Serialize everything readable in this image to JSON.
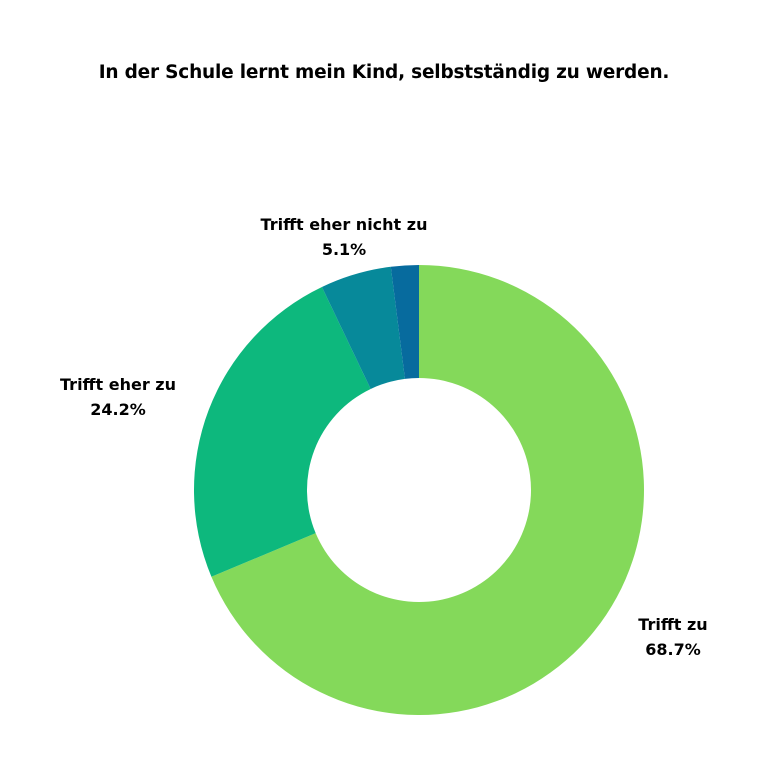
{
  "chart_data": {
    "type": "pie",
    "donut": true,
    "title": "In der Schule lernt mein Kind, selbstständig zu werden.",
    "slices": [
      {
        "label": "Trifft zu",
        "value": 68.7,
        "value_label": "68.7%",
        "color": "#84d95a"
      },
      {
        "label": "Trifft eher zu",
        "value": 24.2,
        "value_label": "24.2%",
        "color": "#0db87d"
      },
      {
        "label": "Trifft eher nicht zu",
        "value": 5.1,
        "value_label": "5.1%",
        "color": "#07899a"
      },
      {
        "label": "",
        "value": 2.0,
        "value_label": "",
        "color": "#076b9e"
      }
    ],
    "start_angle": "12 o'clock",
    "direction": "clockwise"
  }
}
